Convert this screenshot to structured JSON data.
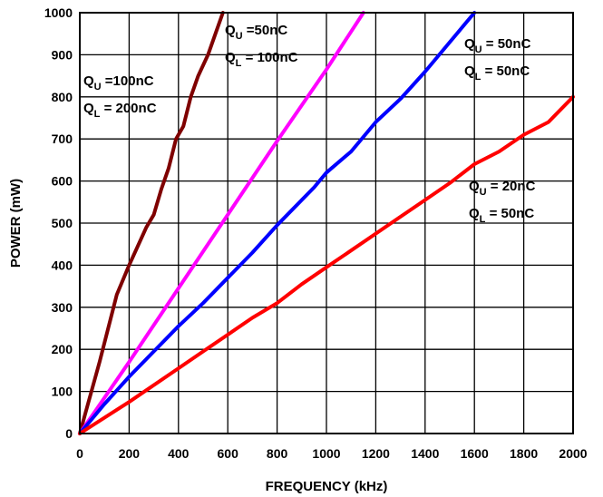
{
  "chart_data": {
    "type": "line",
    "title": "",
    "xlabel": "FREQUENCY (kHz)",
    "ylabel": "POWER (mW)",
    "xlim": [
      0,
      2000
    ],
    "ylim": [
      0,
      1000
    ],
    "x_ticks": [
      "0",
      "200",
      "400",
      "600",
      "800",
      "1000",
      "1200",
      "1400",
      "1600",
      "1800",
      "2000"
    ],
    "y_ticks": [
      "0",
      "100",
      "200",
      "300",
      "400",
      "500",
      "600",
      "700",
      "800",
      "900",
      "1000"
    ],
    "grid": true,
    "series": [
      {
        "color": "#7f0000",
        "label_lines": [
          [
            "Q",
            "U",
            " =100nC"
          ],
          [
            "Q",
            "L",
            " = 200nC"
          ]
        ],
        "points": [
          [
            0,
            0
          ],
          [
            80,
            170
          ],
          [
            150,
            330
          ],
          [
            200,
            400
          ],
          [
            270,
            490
          ],
          [
            300,
            520
          ],
          [
            330,
            580
          ],
          [
            360,
            630
          ],
          [
            390,
            700
          ],
          [
            420,
            730
          ],
          [
            450,
            800
          ],
          [
            480,
            850
          ],
          [
            520,
            900
          ],
          [
            550,
            950
          ],
          [
            580,
            1000
          ]
        ]
      },
      {
        "color": "#ff00ff",
        "label_lines": [
          [
            "Q",
            "U",
            " =50nC"
          ],
          [
            "Q",
            "L",
            " = 100nC"
          ]
        ],
        "points": [
          [
            0,
            0
          ],
          [
            200,
            170
          ],
          [
            400,
            345
          ],
          [
            600,
            520
          ],
          [
            800,
            695
          ],
          [
            1000,
            865
          ],
          [
            1150,
            1000
          ]
        ]
      },
      {
        "color": "#0000ff",
        "label_lines": [
          [
            "Q",
            "U",
            " = 50nC"
          ],
          [
            "Q",
            "L",
            " = 50nC"
          ]
        ],
        "points": [
          [
            0,
            0
          ],
          [
            100,
            70
          ],
          [
            200,
            135
          ],
          [
            300,
            195
          ],
          [
            400,
            255
          ],
          [
            500,
            310
          ],
          [
            600,
            370
          ],
          [
            700,
            430
          ],
          [
            800,
            495
          ],
          [
            900,
            555
          ],
          [
            950,
            585
          ],
          [
            1000,
            620
          ],
          [
            1100,
            670
          ],
          [
            1200,
            740
          ],
          [
            1300,
            795
          ],
          [
            1400,
            860
          ],
          [
            1500,
            930
          ],
          [
            1600,
            1000
          ]
        ]
      },
      {
        "color": "#ff0000",
        "label_lines": [
          [
            "Q",
            "U",
            " = 20nC"
          ],
          [
            "Q",
            "L",
            " = 50nC"
          ]
        ],
        "points": [
          [
            0,
            0
          ],
          [
            200,
            75
          ],
          [
            400,
            155
          ],
          [
            500,
            195
          ],
          [
            600,
            235
          ],
          [
            700,
            275
          ],
          [
            800,
            310
          ],
          [
            900,
            355
          ],
          [
            1000,
            395
          ],
          [
            1100,
            435
          ],
          [
            1200,
            475
          ],
          [
            1300,
            515
          ],
          [
            1400,
            555
          ],
          [
            1500,
            595
          ],
          [
            1600,
            640
          ],
          [
            1700,
            670
          ],
          [
            1800,
            710
          ],
          [
            1900,
            740
          ],
          [
            2000,
            800
          ]
        ]
      }
    ]
  }
}
